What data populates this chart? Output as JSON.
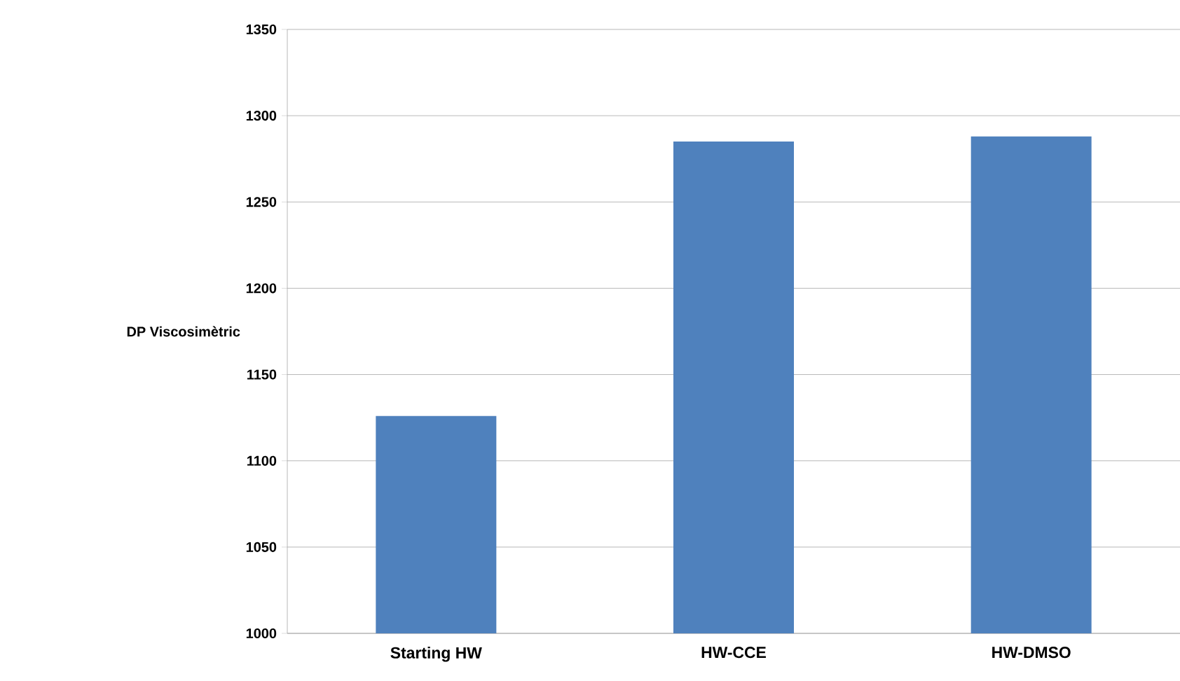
{
  "chart_data": {
    "type": "bar",
    "ylabel": "DP Viscosimètric",
    "categories": [
      "Starting HW",
      "HW-CCE",
      "HW-DMSO"
    ],
    "values": [
      1126,
      1285,
      1288
    ],
    "color": "#4f81bd",
    "ylim": [
      1000,
      1350
    ],
    "yticks": [
      1000,
      1050,
      1100,
      1150,
      1200,
      1250,
      1300,
      1350
    ],
    "grid": "y"
  }
}
